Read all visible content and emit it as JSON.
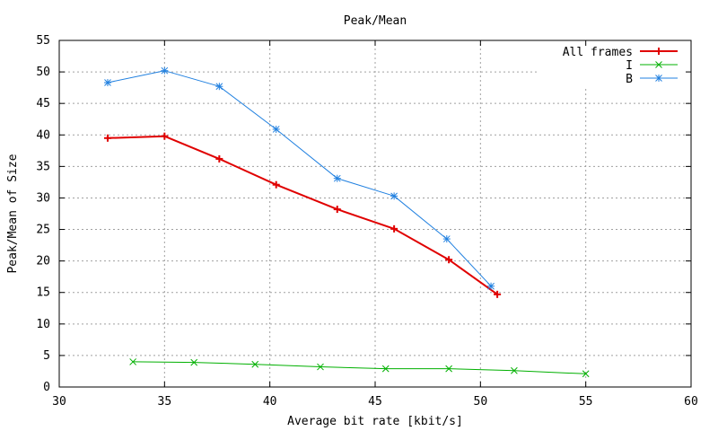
{
  "chart_data": {
    "type": "line",
    "title": "Peak/Mean",
    "xlabel": "Average bit rate [kbit/s]",
    "ylabel": "Peak/Mean of Size",
    "xlim": [
      30,
      60
    ],
    "ylim": [
      0,
      55
    ],
    "x_ticks": [
      30,
      35,
      40,
      45,
      50,
      55,
      60
    ],
    "y_ticks": [
      0,
      5,
      10,
      15,
      20,
      25,
      30,
      35,
      40,
      45,
      50,
      55
    ],
    "grid": true,
    "legend_position": "top-right",
    "series": [
      {
        "name": "All frames",
        "color": "#e00000",
        "marker": "plus",
        "points": [
          [
            32.3,
            39.5
          ],
          [
            35.0,
            39.8
          ],
          [
            37.6,
            36.2
          ],
          [
            40.3,
            32.1
          ],
          [
            43.2,
            28.2
          ],
          [
            45.9,
            25.1
          ],
          [
            48.5,
            20.2
          ],
          [
            50.8,
            14.7
          ]
        ]
      },
      {
        "name": "I",
        "color": "#00b000",
        "marker": "cross",
        "points": [
          [
            33.5,
            4.0
          ],
          [
            36.4,
            3.9
          ],
          [
            39.3,
            3.6
          ],
          [
            42.4,
            3.2
          ],
          [
            45.5,
            2.9
          ],
          [
            48.5,
            2.9
          ],
          [
            51.6,
            2.6
          ],
          [
            55.0,
            2.1
          ]
        ]
      },
      {
        "name": "B",
        "color": "#2080e0",
        "marker": "star",
        "points": [
          [
            32.3,
            48.3
          ],
          [
            35.0,
            50.2
          ],
          [
            37.6,
            47.7
          ],
          [
            40.3,
            40.9
          ],
          [
            43.2,
            33.1
          ],
          [
            45.9,
            30.3
          ],
          [
            48.4,
            23.5
          ],
          [
            50.5,
            16.0
          ]
        ]
      }
    ]
  }
}
